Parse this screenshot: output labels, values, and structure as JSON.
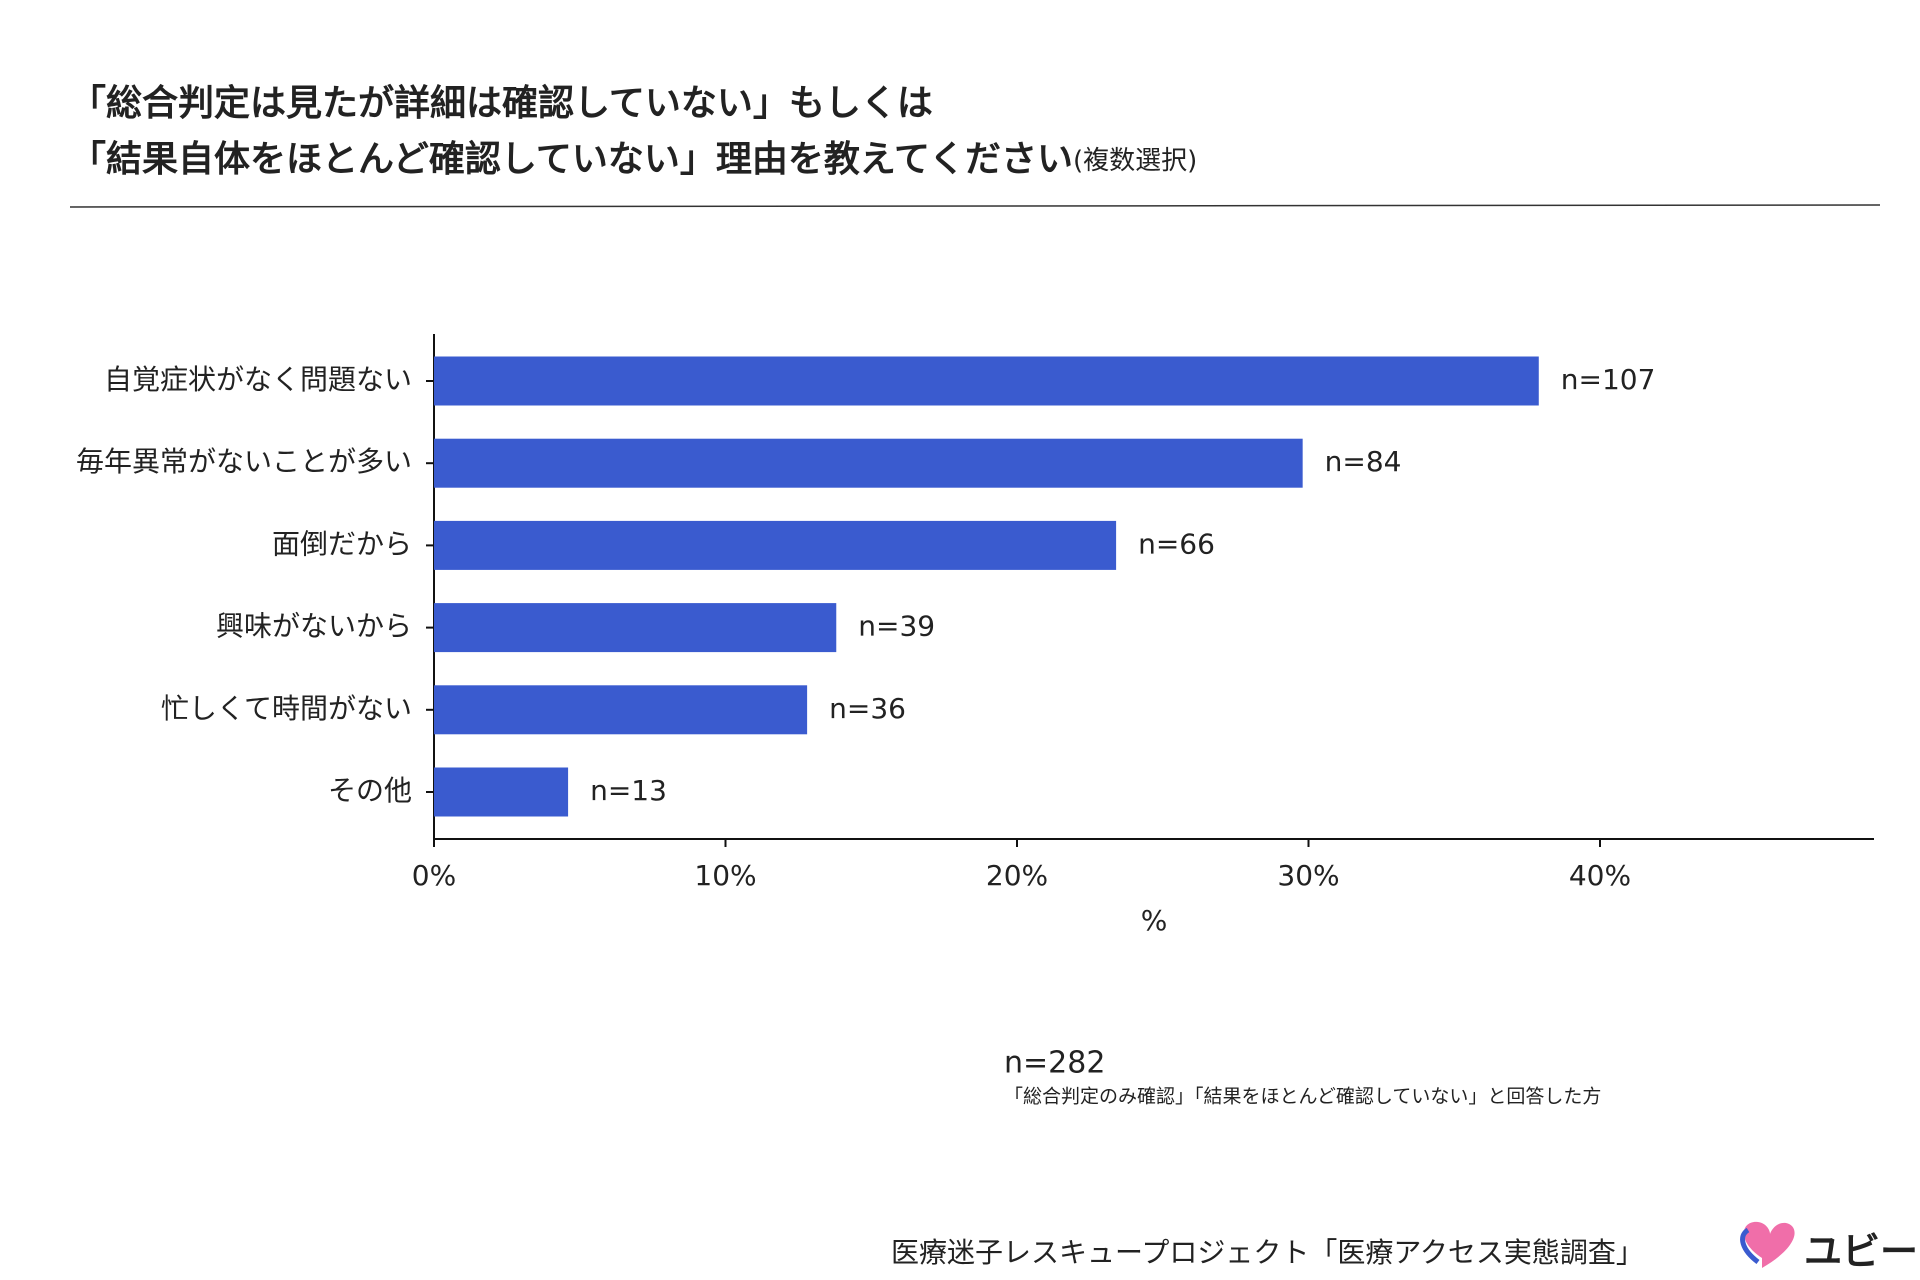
{
  "chart_data": {
    "type": "barh",
    "title_line1": "「総合判定は見たが詳細は確認していない」もしくは",
    "title_line2": "「結果自体をほとんど確認していない」理由を教えてください",
    "title_suffix": "(複数選択)",
    "categories": [
      "自覚症状がなく問題ない",
      "毎年異常がないことが多い",
      "面倒だから",
      "興味がないから",
      "忙しくて時間がない",
      "その他"
    ],
    "values": [
      37.9,
      29.8,
      23.4,
      13.8,
      12.8,
      4.6
    ],
    "n_labels": [
      "n=107",
      "n=84",
      "n=66",
      "n=39",
      "n=36",
      "n=13"
    ],
    "color": "#3a5bcf",
    "xlim": [
      0,
      49.4
    ],
    "xticks": [
      {
        "value": 0,
        "label": "0%"
      },
      {
        "value": 10,
        "label": "10%"
      },
      {
        "value": 20,
        "label": "20%"
      },
      {
        "value": 30,
        "label": "30%"
      },
      {
        "value": 40,
        "label": "40%"
      }
    ],
    "xlabel": "%",
    "sample": "n=282",
    "sample_note": "「総合判定のみ確認」「結果をほとんど確認していない」と回答した方",
    "source": "医療迷子レスキュープロジェクト「医療アクセス実態調査」",
    "logo": "ユビー"
  }
}
